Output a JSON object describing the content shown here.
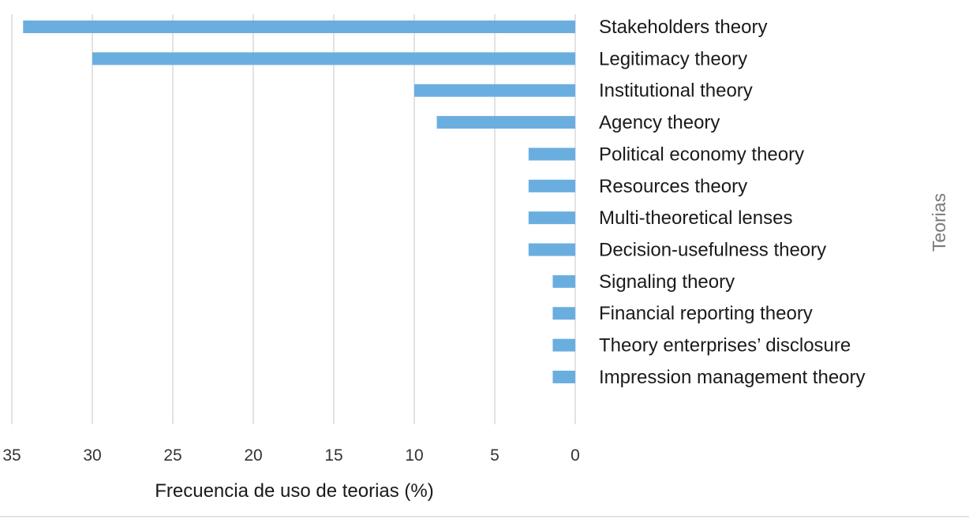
{
  "chart_data": {
    "type": "bar",
    "orientation": "horizontal",
    "x_reversed": true,
    "categories": [
      "Stakeholders theory",
      "Legitimacy theory",
      "Institutional theory",
      "Agency theory",
      "Political economy theory",
      "Resources theory",
      "Multi-theoretical lenses",
      "Decision-usefulness theory",
      "Signaling theory",
      "Financial reporting theory",
      "Theory enterprises’ disclosure",
      "Impression management theory"
    ],
    "values": [
      34.3,
      30.0,
      10.0,
      8.6,
      2.9,
      2.9,
      2.9,
      2.9,
      1.4,
      1.4,
      1.4,
      1.4
    ],
    "xlim": [
      35,
      0
    ],
    "x_ticks": [
      "35",
      "30",
      "25",
      "20",
      "15",
      "10",
      "5",
      "0"
    ],
    "xlabel": "Frecuencia de uso de teorias (%)",
    "ylabel": "Teorias",
    "grid": "vertical",
    "bar_color": "#6aaee0",
    "grid_color": "#e3e3e3",
    "text_color": "#1a1a1a"
  }
}
